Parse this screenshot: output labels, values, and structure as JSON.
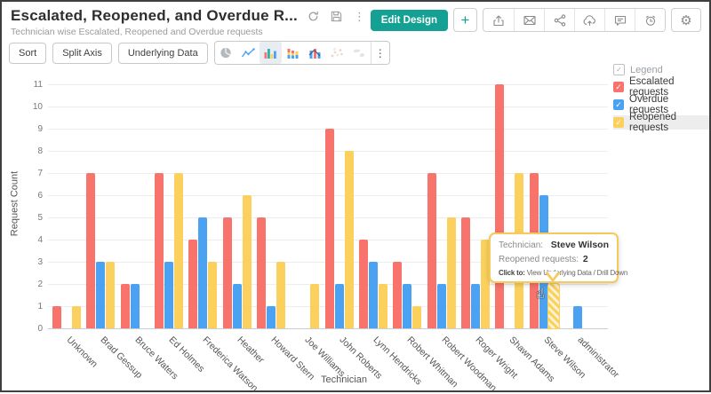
{
  "header": {
    "title": "Escalated, Reopened, and Overdue R...",
    "subtitle": "Technician wise Escalated, Reopened and Overdue requests",
    "icons": [
      "refresh-icon",
      "save-icon",
      "kebab-menu-icon"
    ]
  },
  "actions": {
    "edit_design_label": "Edit Design",
    "add_label": "+",
    "icon_buttons": [
      "export",
      "email",
      "share",
      "publish",
      "comment",
      "schedule",
      "settings"
    ]
  },
  "toolbar": {
    "sort_label": "Sort",
    "split_axis_label": "Split Axis",
    "underlying_data_label": "Underlying Data",
    "chart_type_icons": [
      "pie",
      "line",
      "bar",
      "stacked-bar",
      "combo",
      "scatter",
      "map"
    ],
    "selected_chart_type": "bar"
  },
  "legend": {
    "header_label": "Legend",
    "items": [
      {
        "label": "Escalated requests",
        "color": "#F7736C",
        "checked": true,
        "highlighted": false
      },
      {
        "label": "Overdue requests",
        "color": "#4BA2F2",
        "checked": true,
        "highlighted": false
      },
      {
        "label": "Reopened requests",
        "color": "#FBD05C",
        "checked": true,
        "highlighted": true
      }
    ]
  },
  "tooltip": {
    "row1_label": "Technician:",
    "row1_value": "Steve Wilson",
    "row2_label": "Reopened requests:",
    "row2_value": "2",
    "click_label": "Click to:",
    "click_text": "View Underlying Data / Drill Down"
  },
  "chart_data": {
    "type": "bar",
    "title": "Escalated, Reopened, and Overdue requests by Technician",
    "xlabel": "Technician",
    "ylabel": "Request Count",
    "ylim": [
      0,
      11
    ],
    "ytick_step": 1,
    "grid": true,
    "legend_position": "top-right",
    "categories": [
      "Unknown",
      "Brad Gessup",
      "Bruce Waters",
      "Ed Holmes",
      "Frederica Watson",
      "Heather",
      "Howard Stern",
      "Joe Williams",
      "John Roberts",
      "Lynn Hendricks",
      "Robert Whitman",
      "Robert Woodman",
      "Roger Wright",
      "Shawn Adams",
      "Steve Wilson",
      "administrator"
    ],
    "series": [
      {
        "name": "Escalated requests",
        "color": "#F7736C",
        "values": [
          1,
          7,
          2,
          7,
          4,
          5,
          5,
          null,
          9,
          4,
          3,
          7,
          5,
          11,
          7,
          null
        ]
      },
      {
        "name": "Overdue requests",
        "color": "#4BA2F2",
        "values": [
          null,
          3,
          2,
          3,
          5,
          2,
          1,
          null,
          2,
          3,
          2,
          2,
          2,
          null,
          6,
          1
        ]
      },
      {
        "name": "Reopened requests",
        "color": "#FBD05C",
        "values": [
          1,
          3,
          null,
          7,
          3,
          6,
          3,
          2,
          8,
          2,
          1,
          5,
          4,
          7,
          2,
          null
        ]
      }
    ],
    "hover": {
      "category": "Steve Wilson",
      "series": "Reopened requests",
      "value": 2
    }
  }
}
